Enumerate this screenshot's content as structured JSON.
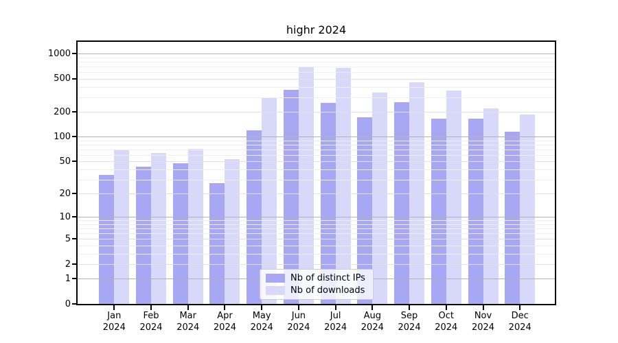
{
  "title": "highr 2024",
  "colors": {
    "ips_bar": "#a7a7f4",
    "downloads_bar": "#d8d8fa",
    "grid_decade": "#b2b2b2",
    "grid_major": "#e0e0e0",
    "grid_minor": "#eeeeee",
    "spine": "#000000"
  },
  "legend": {
    "items": [
      {
        "label": "Nb of distinct IPs",
        "series": "ips"
      },
      {
        "label": "Nb of downloads",
        "series": "downloads"
      }
    ],
    "position": "lower center"
  },
  "y_axis": {
    "ticks": [
      1000,
      500,
      200,
      100,
      50,
      20,
      10,
      5,
      2,
      1,
      0
    ],
    "decade_ticks": [
      1000,
      100,
      10,
      1
    ],
    "minor_gridlines": [
      3,
      4,
      6,
      7,
      8,
      9,
      30,
      40,
      60,
      70,
      80,
      90,
      300,
      400,
      600,
      700,
      800,
      900
    ],
    "scale": "log1p"
  },
  "x_axis": {
    "months": [
      "Jan",
      "Feb",
      "Mar",
      "Apr",
      "May",
      "Jun",
      "Jul",
      "Aug",
      "Sep",
      "Oct",
      "Nov",
      "Dec"
    ],
    "year": "2024"
  },
  "chart_data": {
    "type": "bar",
    "title": "highr 2024",
    "categories": [
      "Jan 2024",
      "Feb 2024",
      "Mar 2024",
      "Apr 2024",
      "May 2024",
      "Jun 2024",
      "Jul 2024",
      "Aug 2024",
      "Sep 2024",
      "Oct 2024",
      "Nov 2024",
      "Dec 2024"
    ],
    "series": [
      {
        "name": "Nb of distinct IPs",
        "values": [
          34,
          43,
          48,
          27,
          119,
          367,
          254,
          171,
          259,
          167,
          164,
          116
        ]
      },
      {
        "name": "Nb of downloads",
        "values": [
          70,
          64,
          72,
          53,
          296,
          682,
          678,
          340,
          450,
          362,
          219,
          184
        ]
      }
    ],
    "y_scale": "log1p",
    "y_ticks": [
      0,
      1,
      2,
      5,
      10,
      20,
      50,
      100,
      200,
      500,
      1000
    ],
    "ylim": [
      0,
      1385
    ],
    "grid": true,
    "legend_position": "lower center"
  }
}
